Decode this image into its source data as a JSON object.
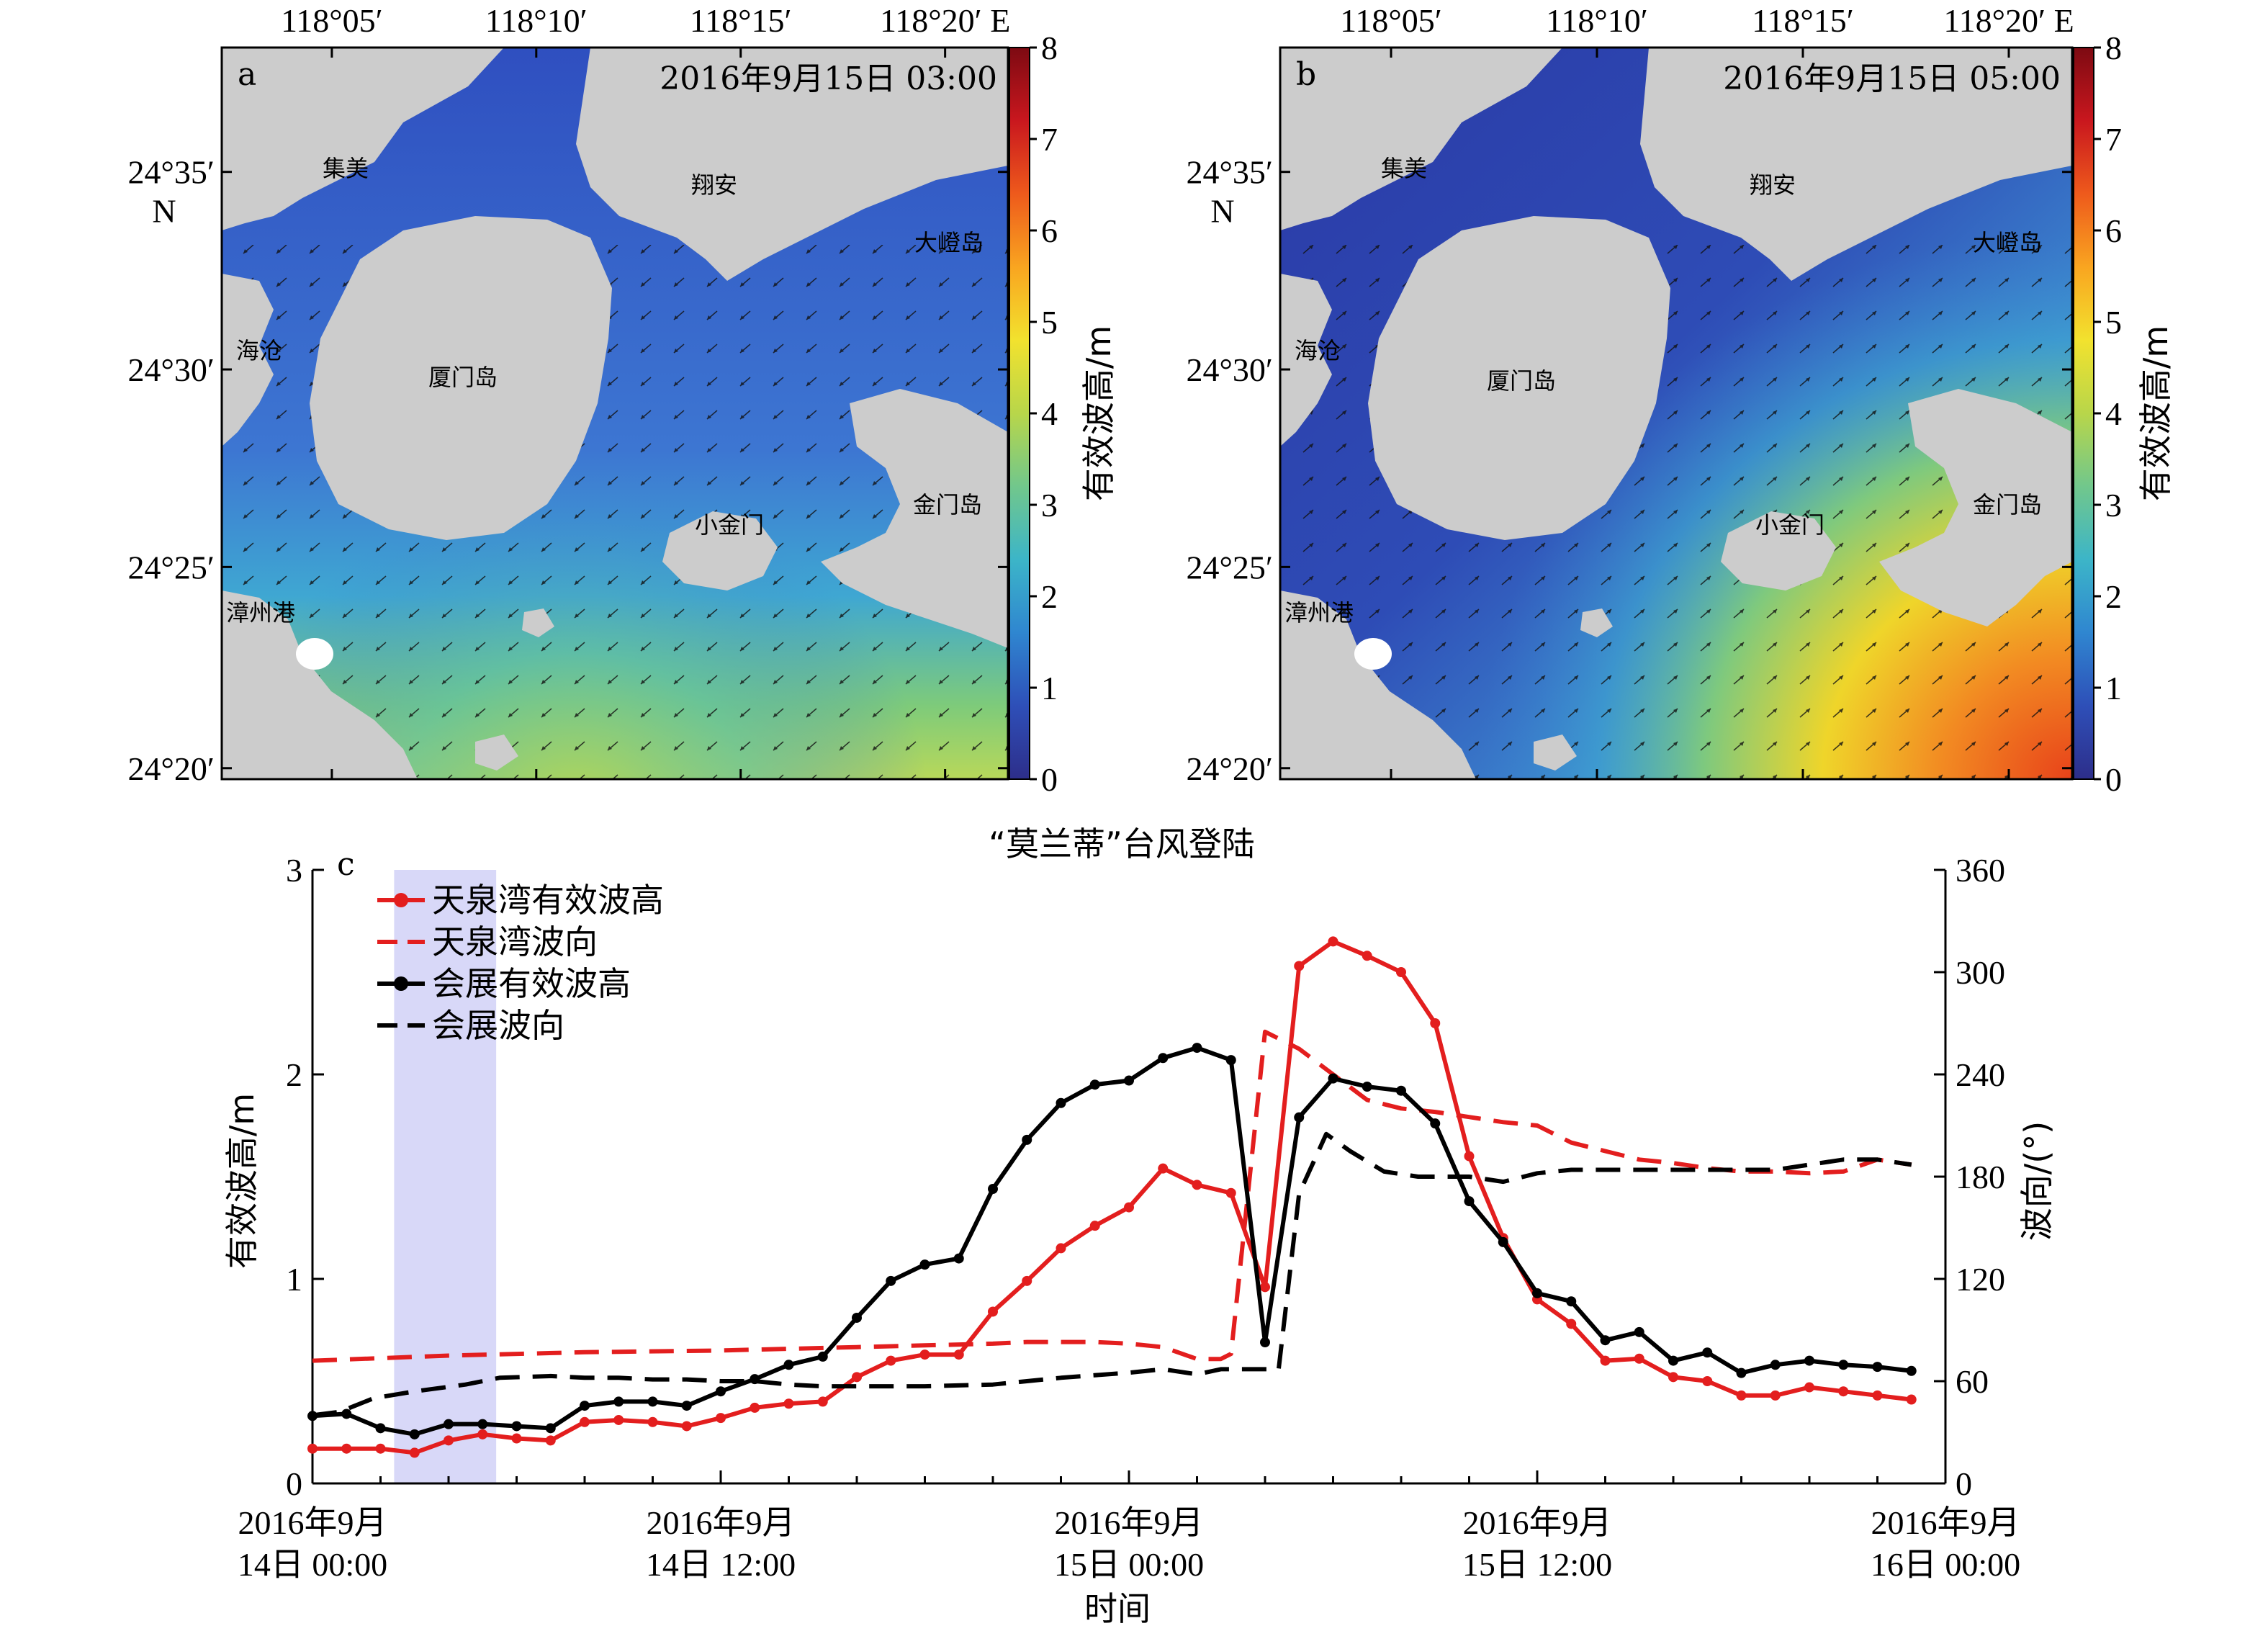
{
  "maps": [
    {
      "panel_label": "a",
      "timestamp": "2016年9月15日 03:00",
      "lon_ticks": [
        "118°05′",
        "118°10′",
        "118°15′",
        "118°20′ E"
      ],
      "lat_ticks": [
        "24°35′",
        "24°30′",
        "24°25′",
        "24°20′"
      ],
      "north_label": "N",
      "places": [
        "集美",
        "翔安",
        "大嶝岛",
        "海沧",
        "厦门岛",
        "小金门",
        "金门岛",
        "漳州港"
      ],
      "colorbar_label": "有效波高/m",
      "colorbar_ticks": [
        "8",
        "7",
        "6",
        "5",
        "4",
        "3",
        "2",
        "1",
        "0"
      ],
      "wave_direction": "southwest",
      "max_wave_height": 4.5
    },
    {
      "panel_label": "b",
      "timestamp": "2016年9月15日 05:00",
      "lon_ticks": [
        "118°05′",
        "118°10′",
        "118°15′",
        "118°20′ E"
      ],
      "lat_ticks": [
        "24°35′",
        "24°30′",
        "24°25′",
        "24°20′"
      ],
      "north_label": "N",
      "places": [
        "集美",
        "翔安",
        "大嶝岛",
        "海沧",
        "厦门岛",
        "小金门",
        "金门岛",
        "漳州港"
      ],
      "colorbar_label": "有效波高/m",
      "colorbar_ticks": [
        "8",
        "7",
        "6",
        "5",
        "4",
        "3",
        "2",
        "1",
        "0"
      ],
      "wave_direction": "northeast",
      "max_wave_height": 7.5
    }
  ],
  "colors": {
    "land": "#cccccc",
    "colorbar": [
      "#2d2e8a",
      "#2e4fb8",
      "#2f86d0",
      "#3cb5c8",
      "#71c78c",
      "#b8d64a",
      "#f2e22e",
      "#f9a520",
      "#ee5a1c",
      "#c9171e",
      "#7d0a12"
    ],
    "typhoon_band": "#d8d8f8",
    "tianquan": "#e31e1e",
    "huizhan": "#000000"
  },
  "chart_data": {
    "type": "line",
    "panel_label": "c",
    "title": "“莫兰蒂”台风登陆",
    "xlabel": "时间",
    "ylabel_left": "有效波高/m",
    "ylabel_right": "波向/(°)",
    "ylim_left": [
      0,
      3
    ],
    "ylim_right": [
      0,
      360
    ],
    "yticks_left": [
      "0",
      "1",
      "2",
      "3"
    ],
    "yticks_right": [
      "0",
      "60",
      "120",
      "180",
      "240",
      "300",
      "360"
    ],
    "xlim_hours": [
      0,
      48
    ],
    "xtick_hours": [
      0,
      12,
      24,
      36,
      48
    ],
    "xtick_labels": [
      [
        "2016年9月",
        "14日 00:00"
      ],
      [
        "2016年9月",
        "14日 12:00"
      ],
      [
        "2016年9月",
        "15日 00:00"
      ],
      [
        "2016年9月",
        "15日 12:00"
      ],
      [
        "2016年9月",
        "16日 00:00"
      ]
    ],
    "typhoon_window_hours": [
      2.4,
      5.4
    ],
    "legend_location": "upper-left",
    "series": [
      {
        "name": "天泉湾有效波高",
        "axis": "left",
        "style": "solid-marker",
        "color": "#e31e1e",
        "x": [
          0,
          1,
          2,
          3,
          4,
          5,
          6,
          7,
          8,
          9,
          10,
          11,
          12,
          13,
          14,
          15,
          16,
          17,
          18,
          19,
          20,
          21,
          22,
          23,
          24,
          25,
          26,
          27,
          28,
          29,
          30,
          31,
          32,
          33,
          34,
          35,
          36,
          37,
          38,
          39,
          40,
          41,
          42,
          43,
          44,
          45,
          46,
          47
        ],
        "y": [
          0.17,
          0.17,
          0.17,
          0.15,
          0.21,
          0.24,
          0.22,
          0.21,
          0.3,
          0.31,
          0.3,
          0.28,
          0.32,
          0.37,
          0.39,
          0.4,
          0.52,
          0.6,
          0.63,
          0.63,
          0.84,
          0.99,
          1.15,
          1.26,
          1.35,
          1.54,
          1.46,
          1.42,
          0.96,
          2.53,
          2.65,
          2.58,
          2.5,
          2.25,
          1.6,
          1.2,
          0.9,
          0.78,
          0.6,
          0.61,
          0.52,
          0.5,
          0.43,
          0.43,
          0.47,
          0.45,
          0.43,
          0.41
        ]
      },
      {
        "name": "天泉湾波向",
        "axis": "right",
        "style": "dashed",
        "color": "#e31e1e",
        "x": [
          0,
          4,
          8,
          12,
          16,
          18,
          20,
          21,
          22,
          23,
          24,
          25,
          26,
          26.7,
          27,
          28,
          29,
          30,
          31,
          32,
          33,
          34,
          35,
          36,
          37,
          38,
          39,
          40,
          41,
          42,
          43,
          44,
          45,
          46,
          47
        ],
        "y": [
          72,
          75,
          77,
          78,
          80,
          81,
          82,
          83,
          83,
          83,
          82,
          80,
          73,
          73,
          76,
          265,
          255,
          240,
          225,
          220,
          218,
          215,
          212,
          210,
          200,
          195,
          190,
          188,
          185,
          183,
          183,
          182,
          183,
          190,
          187
        ]
      },
      {
        "name": "会展有效波高",
        "axis": "left",
        "style": "solid-marker",
        "color": "#000000",
        "x": [
          0,
          1,
          2,
          3,
          4,
          5,
          6,
          7,
          8,
          9,
          10,
          11,
          12,
          13,
          14,
          15,
          16,
          17,
          18,
          19,
          20,
          21,
          22,
          23,
          24,
          25,
          26,
          27,
          28,
          29,
          30,
          31,
          32,
          33,
          34,
          35,
          36,
          37,
          38,
          39,
          40,
          41,
          42,
          43,
          44,
          45,
          46,
          47
        ],
        "y": [
          0.33,
          0.34,
          0.27,
          0.24,
          0.29,
          0.29,
          0.28,
          0.27,
          0.38,
          0.4,
          0.4,
          0.38,
          0.45,
          0.51,
          0.58,
          0.62,
          0.81,
          0.99,
          1.07,
          1.1,
          1.44,
          1.68,
          1.86,
          1.95,
          1.97,
          2.08,
          2.13,
          2.07,
          0.69,
          1.79,
          1.98,
          1.94,
          1.92,
          1.76,
          1.38,
          1.18,
          0.93,
          0.89,
          0.7,
          0.74,
          0.6,
          0.64,
          0.54,
          0.58,
          0.6,
          0.58,
          0.57,
          0.55
        ]
      },
      {
        "name": "会展波向",
        "axis": "right",
        "style": "dashed",
        "color": "#000000",
        "x": [
          0,
          0.8,
          1.8,
          3,
          4.5,
          5.5,
          7,
          8,
          9,
          10,
          11,
          12,
          13,
          14,
          15,
          16,
          18,
          20,
          22,
          24,
          25,
          26,
          26.7,
          27.3,
          27.8,
          28.4,
          29.0,
          29.8,
          30.5,
          31.5,
          32.5,
          34,
          35,
          36,
          37,
          38,
          39,
          40,
          41,
          42,
          43,
          44,
          45,
          46,
          47
        ],
        "y": [
          40,
          42,
          50,
          54,
          58,
          62,
          63,
          62,
          62,
          61,
          61,
          60,
          60,
          58,
          57,
          57,
          57,
          58,
          62,
          65,
          67,
          64,
          67,
          67,
          67,
          67,
          170,
          205,
          195,
          183,
          180,
          180,
          177,
          182,
          184,
          184,
          184,
          184,
          184,
          184,
          184,
          187,
          190,
          190,
          187
        ]
      }
    ]
  }
}
